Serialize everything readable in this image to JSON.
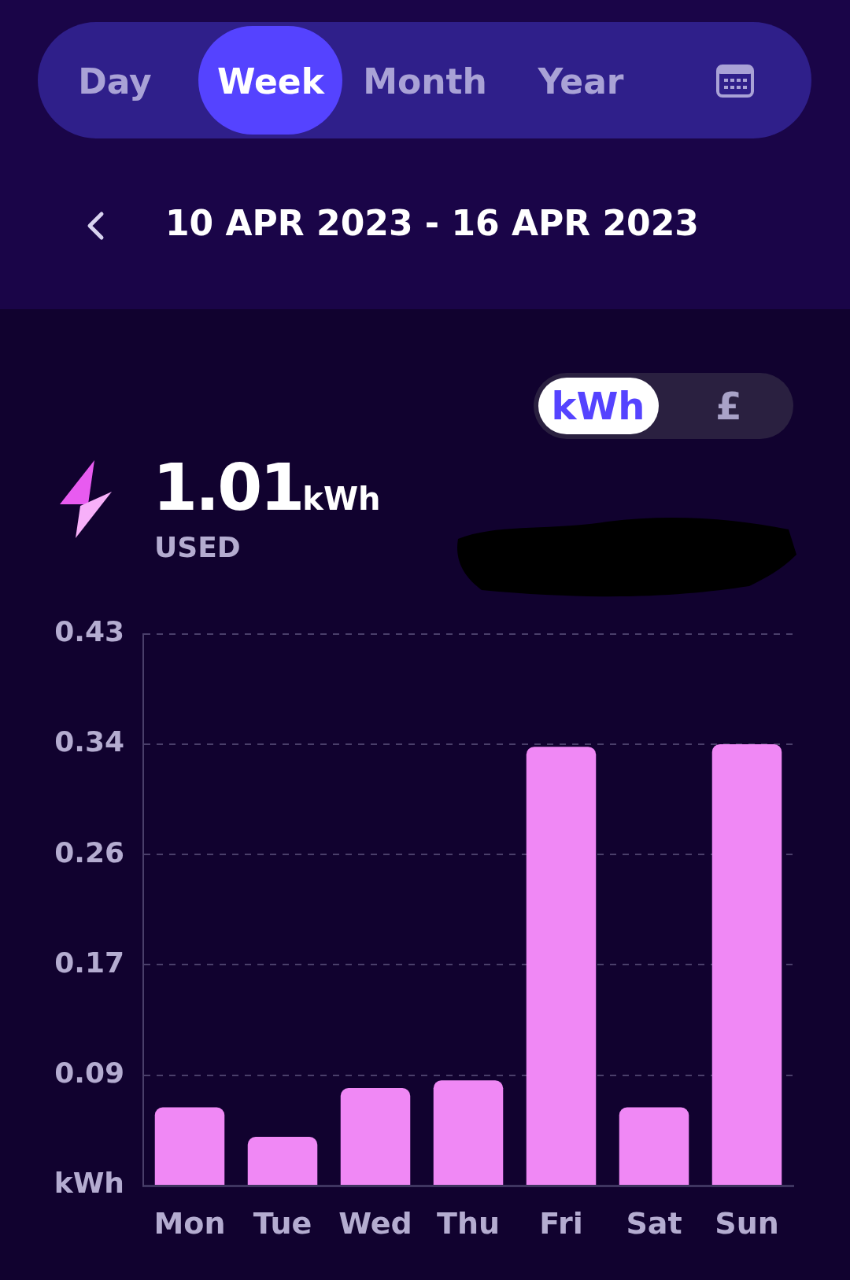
{
  "chart_data": {
    "type": "bar",
    "title": "10 APR 2023 - 16 APR 2023",
    "annotations": [
      "Day",
      "Week",
      "Month",
      "Year",
      "kWh",
      "£",
      "1.01",
      "kWh",
      "USED"
    ],
    "categories": [
      "Mon",
      "Tue",
      "Wed",
      "Thu",
      "Fri",
      "Sat",
      "Sun"
    ],
    "values": [
      0.061,
      0.038,
      0.076,
      0.082,
      0.342,
      0.061,
      0.344
    ],
    "color": "#f088f5",
    "ylim": [
      0,
      0.43
    ],
    "yticks": [
      {
        "value": 0,
        "label": "kWh"
      },
      {
        "value": 0.086,
        "label": "0.09"
      },
      {
        "value": 0.172,
        "label": "0.17"
      },
      {
        "value": 0.258,
        "label": "0.26"
      },
      {
        "value": 0.344,
        "label": "0.34"
      },
      {
        "value": 0.43,
        "label": "0.43"
      }
    ],
    "grid": "y"
  }
}
